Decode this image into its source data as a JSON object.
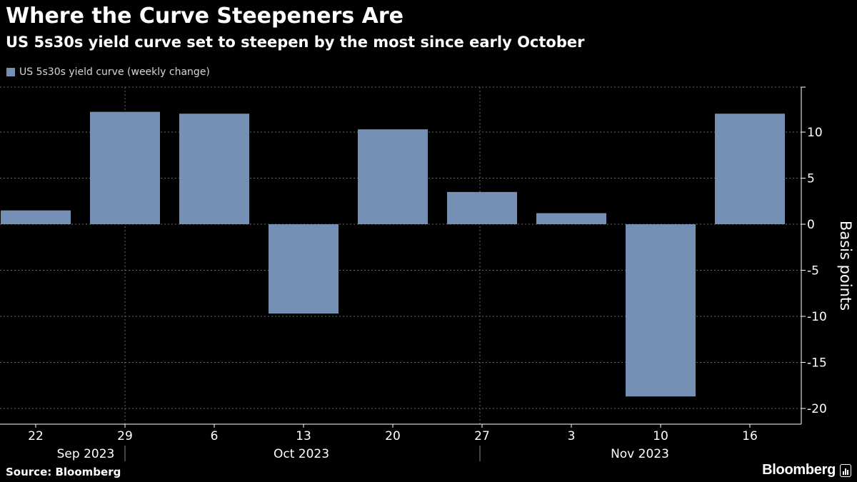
{
  "header": {
    "title": "Where the Curve Steepeners Are",
    "subtitle": "US 5s30s yield curve set to steepen by the most since early October"
  },
  "legend": {
    "label": "US 5s30s yield curve (weekly change)",
    "color": "#7590b5"
  },
  "footer": {
    "source": "Source: Bloomberg",
    "logo_text": "Bloomberg"
  },
  "colors": {
    "background": "#000000",
    "bar": "#7590b5",
    "grid": "#6a6a6a",
    "text": "#ffffff"
  },
  "chart_data": {
    "type": "bar",
    "title": "Where the Curve Steepeners Are",
    "subtitle": "US 5s30s yield curve set to steepen by the most since early October",
    "ylabel": "Basis points",
    "ylabel_position": "right",
    "ylim": [
      -21.5,
      15
    ],
    "yticks": [
      10,
      5,
      0,
      -5,
      -10,
      -15,
      -20
    ],
    "ytick_labels": [
      "10",
      "5",
      "0",
      "-5",
      "-10",
      "-15",
      "-20"
    ],
    "grid": true,
    "categories": [
      "22",
      "29",
      "6",
      "13",
      "20",
      "27",
      "3",
      "10",
      "16"
    ],
    "month_labels": [
      {
        "label": "Sep 2023",
        "start": 0,
        "end": 1
      },
      {
        "label": "Oct 2023",
        "start": 2,
        "end": 5
      },
      {
        "label": "Nov 2023",
        "start": 6,
        "end": 8
      }
    ],
    "series": [
      {
        "name": "US 5s30s yield curve (weekly change)",
        "values": [
          1.5,
          12.2,
          12.0,
          -9.7,
          10.3,
          3.5,
          1.2,
          -18.7,
          12.0
        ]
      }
    ]
  }
}
